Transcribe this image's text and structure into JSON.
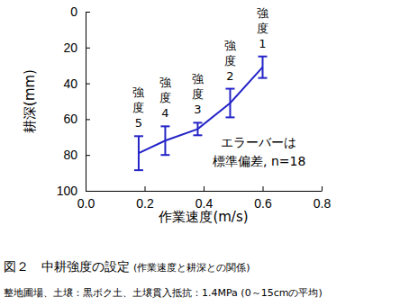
{
  "chart_data": {
    "type": "line",
    "title": "図２　中耕強度の設定",
    "subtitle": "(作業速度と耕深との関係)",
    "note": "整地圃場、土壌：黒ボク土、土壌貫入抵抗：1.4MPa (0～15cmの平均)",
    "x_label": "作業速度(m/s)",
    "y_label": "耕深(mm)",
    "x": [
      0.18,
      0.27,
      0.38,
      0.49,
      0.6
    ],
    "values": [
      79,
      72,
      65.5,
      51,
      31
    ],
    "errors": [
      9.5,
      8,
      3.5,
      8,
      6
    ],
    "point_labels": [
      "強度5",
      "強度4",
      "強度3",
      "強度2",
      "強度1"
    ],
    "annotation": [
      "エラーバーは",
      "標準偏差, n=18"
    ],
    "color": "#2424c8",
    "xlim": [
      0,
      0.8
    ],
    "xticks": [
      {
        "value": 0,
        "label": "0.0"
      },
      0.2,
      0.4,
      0.6,
      0.8
    ],
    "ylim": [
      0,
      100
    ],
    "yticks": [
      0,
      20,
      40,
      60,
      80,
      100
    ],
    "grid": false
  }
}
